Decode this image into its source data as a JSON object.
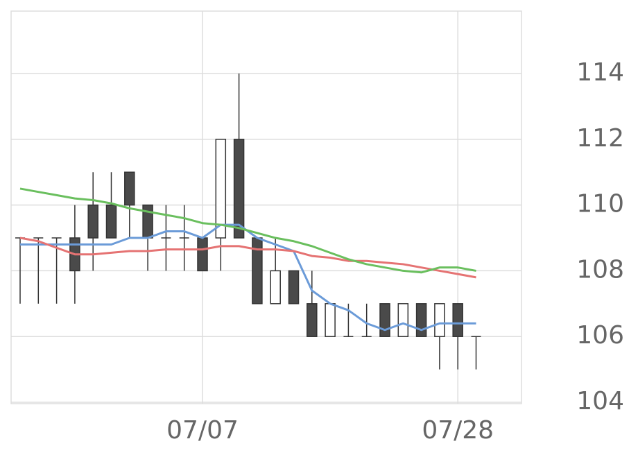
{
  "chart_data": {
    "type": "candlestick",
    "categories": [
      null,
      null,
      null,
      null,
      null,
      null,
      null,
      null,
      null,
      null,
      "07/07",
      null,
      null,
      null,
      null,
      null,
      null,
      null,
      null,
      null,
      null,
      null,
      null,
      null,
      "07/28",
      null
    ],
    "open": [
      109,
      109,
      109,
      109,
      110,
      110,
      111,
      110,
      109,
      109,
      109,
      109,
      112,
      109,
      107,
      108,
      107,
      106,
      106,
      106,
      107,
      106,
      107,
      106,
      107,
      106
    ],
    "high": [
      109,
      109,
      109,
      110,
      111,
      111,
      111,
      110,
      110,
      110,
      109,
      112,
      114,
      109,
      109,
      108,
      108,
      107,
      107,
      107,
      107,
      107,
      107,
      107,
      107,
      106
    ],
    "low": [
      107,
      107,
      107,
      107,
      108,
      109,
      109,
      108,
      108,
      108,
      108,
      108,
      109,
      107,
      107,
      107,
      106,
      106,
      106,
      106,
      106,
      106,
      106,
      105,
      105,
      105
    ],
    "close": [
      109,
      109,
      109,
      108,
      109,
      109,
      110,
      109,
      109,
      109,
      108,
      112,
      109,
      107,
      108,
      107,
      106,
      107,
      106,
      106,
      106,
      107,
      106,
      107,
      106,
      106
    ],
    "up_color": "#ffffff",
    "down_color": "#4a4a4a",
    "wick_color": "#333333",
    "lines": [
      {
        "color": "#6b9bd8",
        "values": [
          108.8,
          108.8,
          108.8,
          108.8,
          108.8,
          108.8,
          109,
          109,
          109.2,
          109.2,
          109,
          109.4,
          109.4,
          109,
          108.8,
          108.6,
          107.4,
          107,
          106.8,
          106.4,
          106.2,
          106.4,
          106.2,
          106.4,
          106.4,
          106.4
        ]
      },
      {
        "color": "#e57373",
        "values": [
          109,
          108.9,
          108.7,
          108.5,
          108.5,
          108.55,
          108.6,
          108.6,
          108.65,
          108.65,
          108.65,
          108.75,
          108.75,
          108.65,
          108.65,
          108.6,
          108.45,
          108.4,
          108.3,
          108.3,
          108.25,
          108.2,
          108.1,
          108.0,
          107.9,
          107.8
        ]
      },
      {
        "color": "#6abf5e",
        "values": [
          110.5,
          110.4,
          110.3,
          110.2,
          110.15,
          110.05,
          109.9,
          109.8,
          109.7,
          109.6,
          109.45,
          109.4,
          109.3,
          109.15,
          109.0,
          108.9,
          108.75,
          108.55,
          108.35,
          108.2,
          108.1,
          108.0,
          107.95,
          108.1,
          108.1,
          108.0
        ]
      }
    ],
    "ylim": [
      104,
      115.9
    ],
    "yticks": [
      104,
      106,
      108,
      110,
      112,
      114
    ],
    "grid": true
  }
}
